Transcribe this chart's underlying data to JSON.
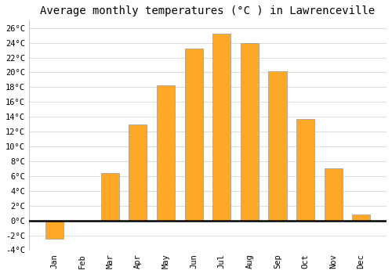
{
  "title": "Average monthly temperatures (°C ) in Lawrenceville",
  "months": [
    "Jan",
    "Feb",
    "Mar",
    "Apr",
    "May",
    "Jun",
    "Jul",
    "Aug",
    "Sep",
    "Oct",
    "Nov",
    "Dec"
  ],
  "temperatures": [
    -2.5,
    0,
    6.4,
    13.0,
    18.2,
    23.2,
    25.2,
    24.0,
    20.2,
    13.7,
    7.0,
    0.8
  ],
  "bar_color": "#FFA726",
  "bar_edge_color": "#999999",
  "ylim": [
    -4,
    27
  ],
  "yticks": [
    -4,
    -2,
    0,
    2,
    4,
    6,
    8,
    10,
    12,
    14,
    16,
    18,
    20,
    22,
    24,
    26
  ],
  "ytick_labels": [
    "-4°C",
    "-2°C",
    "0°C",
    "2°C",
    "4°C",
    "6°C",
    "8°C",
    "10°C",
    "12°C",
    "14°C",
    "16°C",
    "18°C",
    "20°C",
    "22°C",
    "24°C",
    "26°C"
  ],
  "background_color": "#ffffff",
  "grid_color": "#dddddd",
  "title_fontsize": 10,
  "tick_fontsize": 7.5,
  "bar_width": 0.65
}
